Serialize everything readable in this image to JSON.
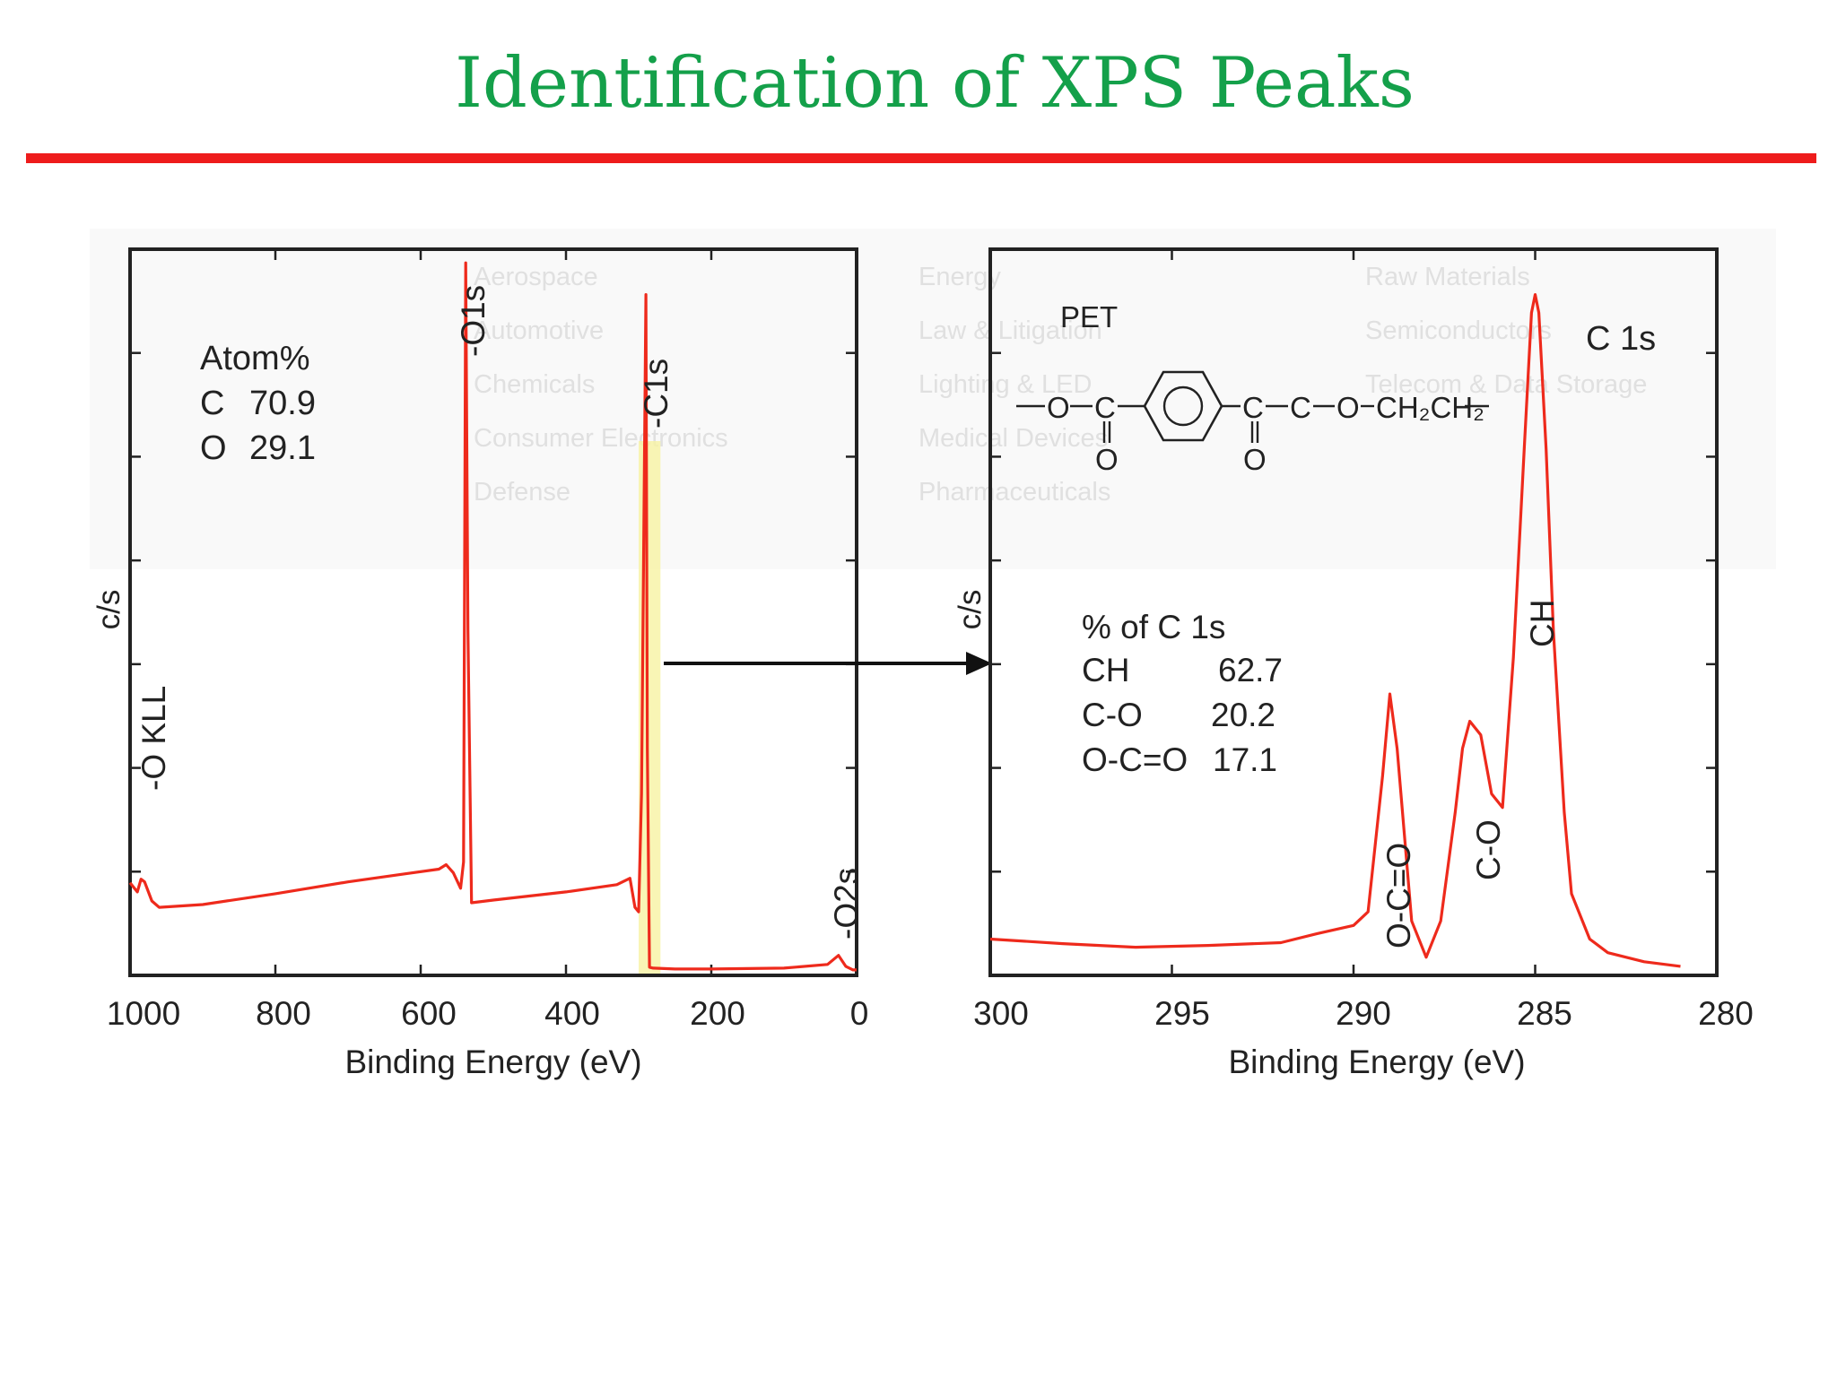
{
  "slide": {
    "title": "Identification of XPS Peaks",
    "accent_title_color": "#14a04a",
    "rule_color": "#ee1c1c"
  },
  "watermark": {
    "items": [
      "Aerospace",
      "Automotive",
      "Chemicals",
      "Consumer Electronics",
      "Defense",
      "Energy",
      "Law & Litigation",
      "Lighting & LED",
      "Medical Devices",
      "Pharmaceuticals",
      "Raw Materials",
      "Semiconductors",
      "Telecom & Data Storage"
    ]
  },
  "chart_data": [
    {
      "type": "line",
      "xlabel": "Binding Energy (eV)",
      "ylabel": "c/s",
      "xlim": [
        1000,
        0
      ],
      "x_ticks": [
        "1000",
        "800",
        "600",
        "400",
        "200",
        "0"
      ],
      "series": [
        {
          "color": "#ee2a1c",
          "x": [
            1000,
            990,
            985,
            980,
            970,
            960,
            900,
            800,
            700,
            620,
            575,
            565,
            555,
            545,
            541,
            538,
            535,
            530,
            500,
            400,
            330,
            312,
            305,
            300,
            296,
            290,
            288,
            285,
            280,
            250,
            200,
            100,
            40,
            25,
            15,
            5,
            0
          ],
          "y": [
            10.2,
            9.2,
            10.6,
            10.3,
            8.2,
            7.5,
            7.8,
            9.0,
            10.3,
            11.2,
            11.7,
            12.2,
            11.3,
            9.6,
            12.5,
            78.5,
            38.0,
            8.0,
            8.3,
            9.2,
            10.0,
            10.7,
            7.5,
            7.0,
            20.0,
            75.0,
            25.0,
            0.9,
            0.8,
            0.7,
            0.7,
            0.8,
            1.2,
            2.2,
            1.0,
            0.6,
            0.6
          ]
        }
      ],
      "annotations": {
        "peak_labels": [
          "-O KLL",
          "-O1s",
          "-C1s",
          "-O2s"
        ],
        "inset_title": "Atom%",
        "composition": [
          {
            "element": "C",
            "value": "70.9"
          },
          {
            "element": "O",
            "value": "29.1"
          }
        ],
        "highlight_region_ev": [
          270,
          300
        ]
      }
    },
    {
      "type": "line",
      "title": "C 1s",
      "xlabel": "Binding Energy (eV)",
      "ylabel": "c/s",
      "xlim": [
        300,
        280
      ],
      "x_ticks": [
        "300",
        "295",
        "290",
        "285",
        "280"
      ],
      "series": [
        {
          "color": "#ee2a1c",
          "x": [
            300,
            298,
            296,
            294,
            292,
            291,
            290,
            289.6,
            289.2,
            289.0,
            288.8,
            288.4,
            288.0,
            287.6,
            287.2,
            287.0,
            286.8,
            286.5,
            286.2,
            285.9,
            285.6,
            285.3,
            285.1,
            285.0,
            284.9,
            284.7,
            284.5,
            284.2,
            284.0,
            283.5,
            283.0,
            282.0,
            281.0
          ],
          "y": [
            4.0,
            3.5,
            3.1,
            3.3,
            3.6,
            4.6,
            5.5,
            7.0,
            22.0,
            31.0,
            25.0,
            6.0,
            2.0,
            6.0,
            18.0,
            25.0,
            28.0,
            26.5,
            20.0,
            18.5,
            35.0,
            58.0,
            73.0,
            75.0,
            73.0,
            58.0,
            38.0,
            18.0,
            9.0,
            4.0,
            2.5,
            1.5,
            1.0
          ]
        }
      ],
      "annotations": {
        "peak_labels": [
          "O-C=O",
          "C-O",
          "CH"
        ],
        "compound": "PET",
        "structure_text": [
          "O",
          "C",
          "O",
          "C",
          "O",
          "C",
          "O",
          "CH₂CH₂"
        ],
        "table_title": "% of C 1s",
        "components": [
          {
            "name": "CH",
            "value": "62.7"
          },
          {
            "name": "C-O",
            "value": "20.2"
          },
          {
            "name": "O-C=O",
            "value": "17.1"
          }
        ]
      }
    }
  ]
}
